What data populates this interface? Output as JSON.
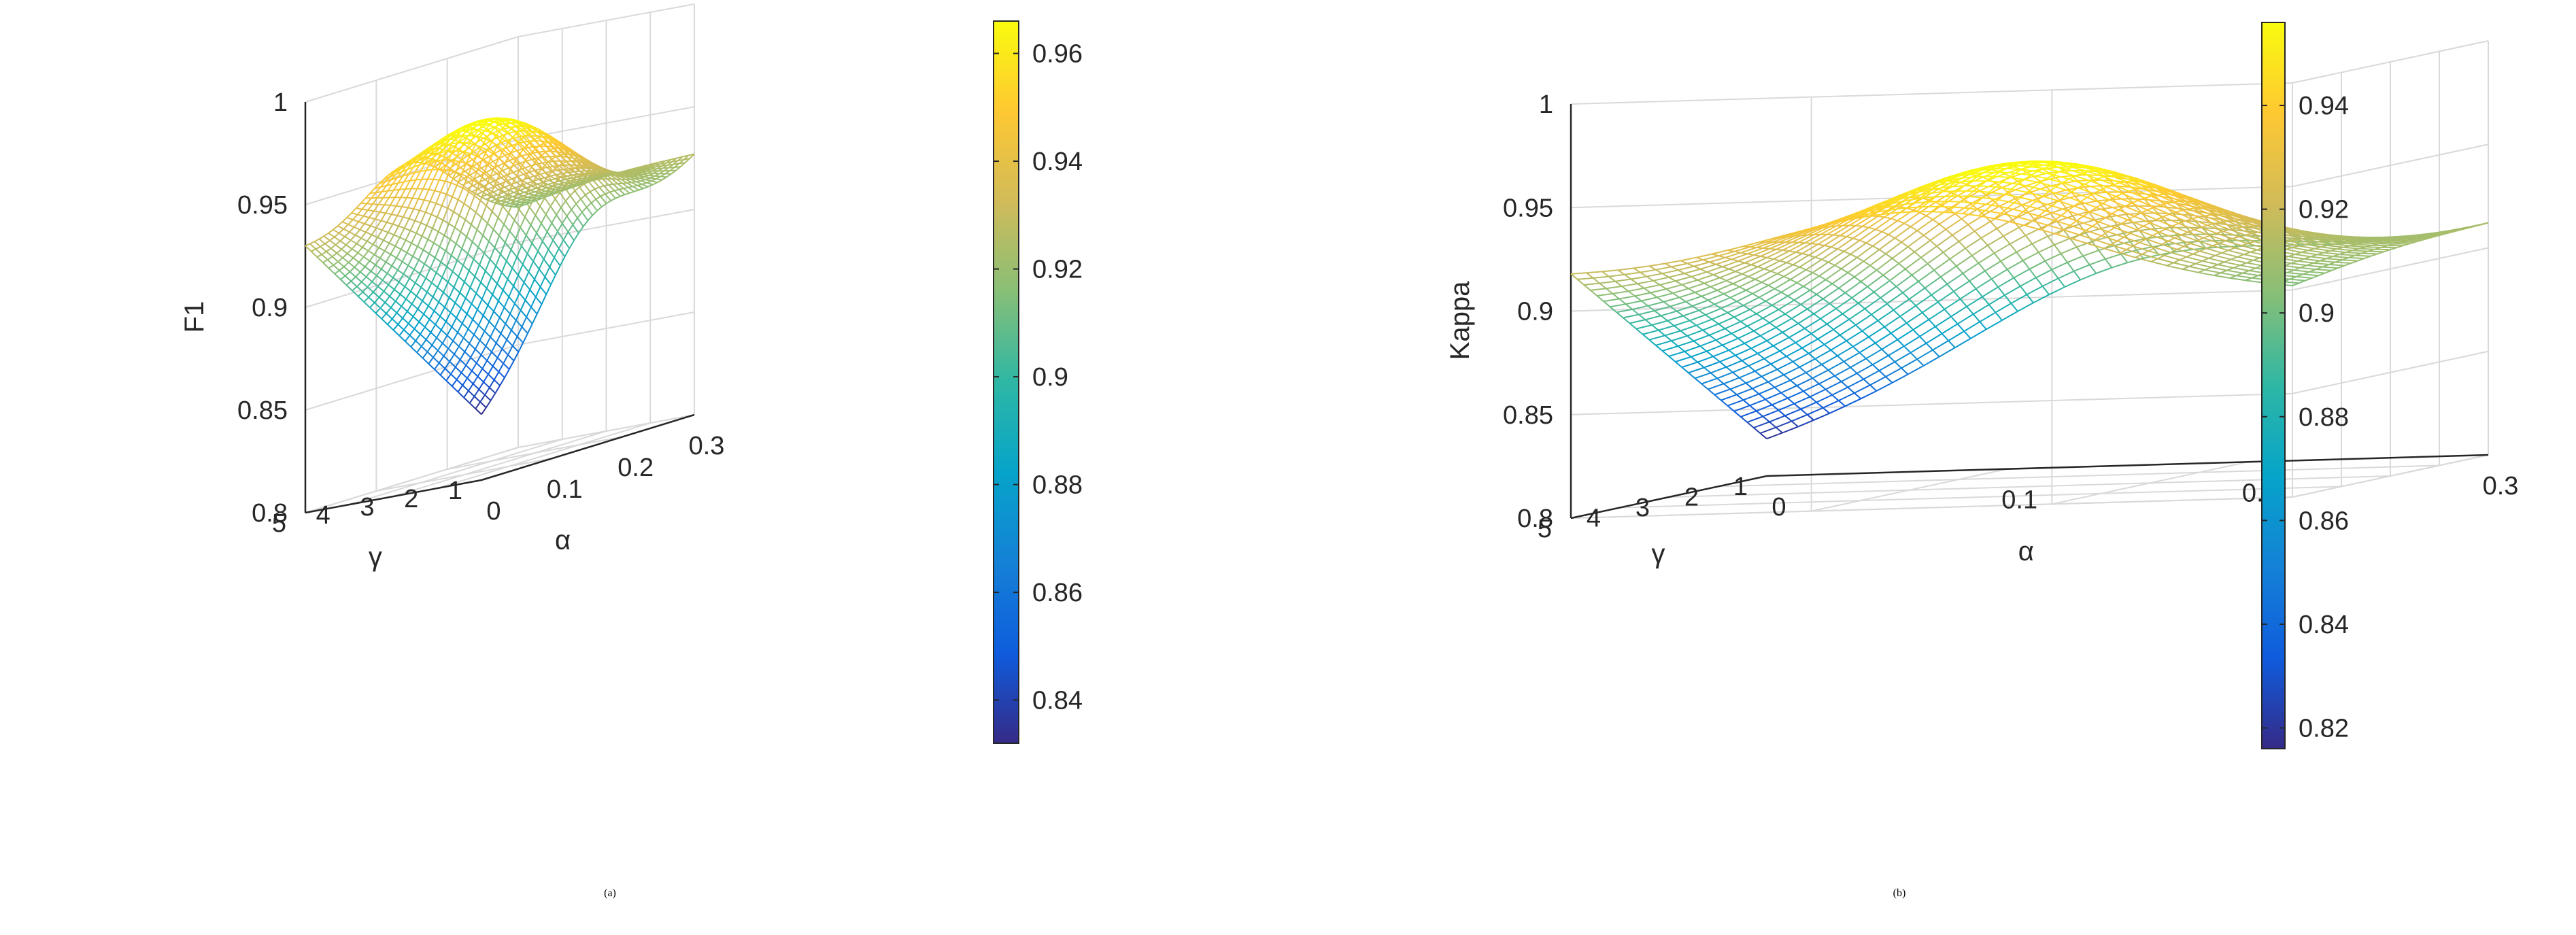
{
  "chart_data": [
    {
      "type": "surface",
      "caption_letter": "a",
      "zlabel": "F1",
      "xlabel": "α",
      "ylabel": "γ",
      "zlim": [
        0.8,
        1
      ],
      "z_ticks": [
        "0.8",
        "0.85",
        "0.9",
        "0.95",
        "1"
      ],
      "x_ticks": [
        "0",
        "0.1",
        "0.2",
        "0.3"
      ],
      "y_ticks": [
        "1",
        "2",
        "3",
        "4",
        "5"
      ],
      "xlim": [
        0,
        0.3
      ],
      "ylim": [
        1,
        5
      ],
      "colorbar_ticks": [
        "0.84",
        "0.86",
        "0.88",
        "0.9",
        "0.92",
        "0.94",
        "0.96"
      ],
      "colorbar_range": [
        0.832,
        0.966
      ],
      "corner_values": {
        "a0_g1": 0.832,
        "a0_g5": 0.93,
        "a03_g1": 0.925,
        "a03_g5": 0.915
      },
      "peak": {
        "alpha": 0.15,
        "gamma": 3,
        "value": 0.966
      },
      "colormap": [
        "#352a87",
        "#0f5cdd",
        "#1481d6",
        "#06a4ca",
        "#2eb7a4",
        "#87bf77",
        "#d1bb59",
        "#fec832",
        "#f9fb0e"
      ]
    },
    {
      "type": "surface",
      "caption_letter": "b",
      "zlabel": "Kappa",
      "xlabel": "α",
      "ylabel": "γ",
      "zlim": [
        0.8,
        1
      ],
      "z_ticks": [
        "0.8",
        "0.85",
        "0.9",
        "0.95",
        "1"
      ],
      "x_ticks": [
        "0",
        "0.1",
        "0.2",
        "0.3"
      ],
      "y_ticks": [
        "1",
        "2",
        "3",
        "4",
        "5"
      ],
      "xlim": [
        0,
        0.3
      ],
      "ylim": [
        1,
        5
      ],
      "colorbar_ticks": [
        "0.82",
        "0.84",
        "0.86",
        "0.88",
        "0.9",
        "0.92",
        "0.94"
      ],
      "colorbar_range": [
        0.816,
        0.956
      ],
      "corner_values": {
        "a0_g1": 0.818,
        "a0_g5": 0.918,
        "a03_g1": 0.91,
        "a03_g5": 0.9
      },
      "peak": {
        "alpha": 0.15,
        "gamma": 3,
        "value": 0.956
      },
      "colormap": [
        "#352a87",
        "#0f5cdd",
        "#1481d6",
        "#06a4ca",
        "#2eb7a4",
        "#87bf77",
        "#d1bb59",
        "#fec832",
        "#f9fb0e"
      ]
    }
  ]
}
